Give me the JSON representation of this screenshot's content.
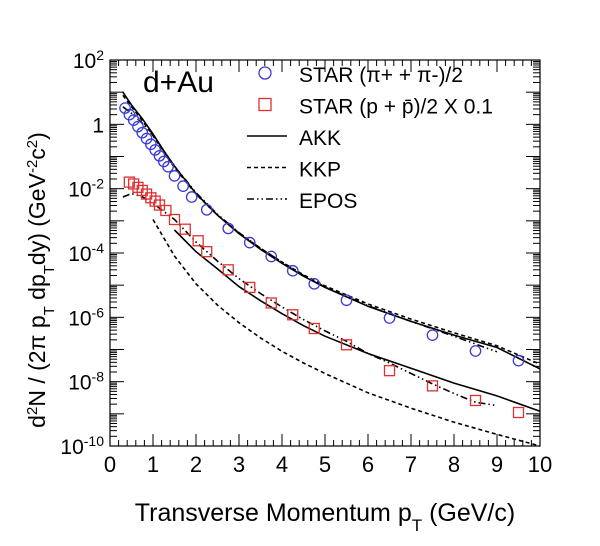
{
  "chart_data": {
    "type": "scatter",
    "title": "",
    "annotation": "d+Au",
    "xlabel": "Transverse Momentum p_T (GeV/c)",
    "ylabel": "d^2N / (2π p_T dp_T dy) (GeV^-2 c^2)",
    "xlim": [
      0,
      10
    ],
    "ylim": [
      1e-10,
      100
    ],
    "yscale": "log",
    "x_ticks": [
      "0",
      "1",
      "2",
      "3",
      "4",
      "5",
      "6",
      "7",
      "8",
      "9",
      "10"
    ],
    "y_ticks": [
      {
        "mant": "10",
        "exp": "2",
        "value": 100
      },
      {
        "mant": "1",
        "exp": "",
        "value": 1
      },
      {
        "mant": "10",
        "exp": "-2",
        "value": 0.01
      },
      {
        "mant": "10",
        "exp": "-4",
        "value": 0.0001
      },
      {
        "mant": "10",
        "exp": "-6",
        "value": 1e-06
      },
      {
        "mant": "10",
        "exp": "-8",
        "value": 1e-08
      },
      {
        "mant": "10",
        "exp": "-10",
        "value": 1e-10
      }
    ],
    "grid": false,
    "legend_position": "top-right",
    "series": [
      {
        "name": "STAR (π+ + π-)/2",
        "kind": "markers",
        "marker": "circle",
        "color": "#3a3ad8",
        "x": [
          0.35,
          0.45,
          0.55,
          0.65,
          0.75,
          0.85,
          0.95,
          1.05,
          1.15,
          1.25,
          1.35,
          1.5,
          1.7,
          1.9,
          2.25,
          2.75,
          3.25,
          3.75,
          4.25,
          4.75,
          5.5,
          6.5,
          7.5,
          8.5,
          9.5
        ],
        "y": [
          3.2,
          2.0,
          1.35,
          0.85,
          0.55,
          0.36,
          0.24,
          0.16,
          0.105,
          0.07,
          0.048,
          0.025,
          0.012,
          0.0055,
          0.0022,
          0.00058,
          0.00021,
          7.8e-05,
          2.8e-05,
          1.1e-05,
          3.4e-06,
          9.5e-07,
          2.8e-07,
          9e-08,
          4.5e-08
        ]
      },
      {
        "name": "STAR (p + p̄)/2 X 0.1",
        "kind": "markers",
        "marker": "square",
        "color": "#e03030",
        "x": [
          0.45,
          0.55,
          0.65,
          0.75,
          0.85,
          0.95,
          1.05,
          1.15,
          1.3,
          1.5,
          1.75,
          2.05,
          2.25,
          2.75,
          3.25,
          3.75,
          4.25,
          4.75,
          5.5,
          6.5,
          7.5,
          8.5,
          9.5
        ],
        "y": [
          0.016,
          0.014,
          0.011,
          0.0088,
          0.0068,
          0.0052,
          0.0041,
          0.0031,
          0.0021,
          0.0011,
          0.00055,
          0.00024,
          0.00011,
          3e-05,
          8.5e-06,
          2.8e-06,
          1.2e-06,
          4.5e-07,
          1.4e-07,
          2.2e-08,
          7.4e-09,
          2.6e-09,
          1.1e-09
        ]
      },
      {
        "name": "AKK",
        "kind": "line",
        "dash": "solid",
        "x": [
          0.3,
          0.5,
          0.75,
          1,
          1.25,
          1.5,
          2,
          2.5,
          3,
          3.5,
          4,
          4.5,
          5,
          6,
          7,
          8,
          9,
          10
        ],
        "y": [
          10,
          4,
          1.5,
          0.5,
          0.15,
          0.05,
          0.007,
          0.0015,
          0.0004,
          0.00013,
          4.8e-05,
          1.9e-05,
          8.5e-06,
          2.2e-06,
          7.5e-07,
          2.8e-07,
          1.15e-07,
          2.5e-08
        ]
      },
      {
        "name": "AKK",
        "kind": "line",
        "dash": "solid",
        "legend": false,
        "x": [
          1.5,
          2,
          2.5,
          3,
          3.5,
          4,
          4.5,
          5,
          6,
          7,
          8,
          9,
          10
        ],
        "y": [
          0.00052,
          0.00011,
          3.2e-05,
          9e-06,
          3.3e-06,
          1.3e-06,
          5.5e-07,
          2.6e-07,
          7.5e-08,
          2.6e-08,
          9e-09,
          3.6e-09,
          1.2e-09
        ]
      },
      {
        "name": "KKP",
        "kind": "line",
        "dash": "dashed",
        "x": [
          0.3,
          0.5,
          0.75,
          1,
          1.25,
          1.5,
          2,
          2.5,
          3,
          3.5,
          4,
          4.5,
          5,
          6,
          7,
          8,
          9,
          10
        ],
        "y": [
          8,
          3.5,
          1.3,
          0.45,
          0.14,
          0.045,
          0.0068,
          0.0015,
          0.00042,
          0.00014,
          5.2e-05,
          2.1e-05,
          9.5e-06,
          2.6e-06,
          8.8e-07,
          3.3e-07,
          1.3e-07,
          3.5e-08
        ]
      },
      {
        "name": "KKP",
        "kind": "line",
        "dash": "dashed",
        "legend": false,
        "x": [
          1,
          1.5,
          2,
          2.5,
          3,
          3.5,
          4,
          4.5,
          5,
          6,
          7,
          8,
          9,
          10
        ],
        "y": [
          0.0011,
          8e-05,
          1.1e-05,
          2.4e-06,
          6.8e-07,
          2.3e-07,
          8.8e-08,
          3.8e-08,
          1.8e-08,
          4.5e-09,
          1.5e-09,
          5.5e-10,
          2.3e-10,
          1e-10
        ]
      },
      {
        "name": "EPOS",
        "kind": "line",
        "dash": "dashdotdot",
        "x": [
          0.3,
          0.5,
          0.75,
          1,
          1.25,
          1.5,
          2,
          2.5,
          3,
          3.5,
          4,
          4.5,
          5,
          6,
          7,
          8,
          9
        ],
        "y": [
          3.5,
          2.2,
          1.1,
          0.45,
          0.15,
          0.05,
          0.0075,
          0.0016,
          0.00043,
          0.00014,
          5.2e-05,
          2e-05,
          8.8e-06,
          2.3e-06,
          7.5e-07,
          2.6e-07,
          8.5e-08
        ]
      },
      {
        "name": "EPOS",
        "kind": "line",
        "dash": "dashdotdot",
        "legend": false,
        "x": [
          0.3,
          0.5,
          0.75,
          1,
          1.5,
          2,
          2.5,
          3,
          3.5,
          4,
          4.5,
          5,
          5.5,
          6,
          6.5,
          7,
          7.5,
          8,
          8.5,
          9
        ],
        "y": [
          0.0055,
          0.007,
          0.0056,
          0.0035,
          0.0011,
          0.00022,
          5.6e-05,
          1.6e-05,
          5.5e-06,
          2.1e-06,
          8.5e-07,
          3.8e-07,
          1.8e-07,
          7.5e-08,
          3.8e-08,
          1.8e-08,
          8.5e-09,
          4.3e-09,
          2.3e-09,
          1.8e-09
        ]
      }
    ]
  }
}
